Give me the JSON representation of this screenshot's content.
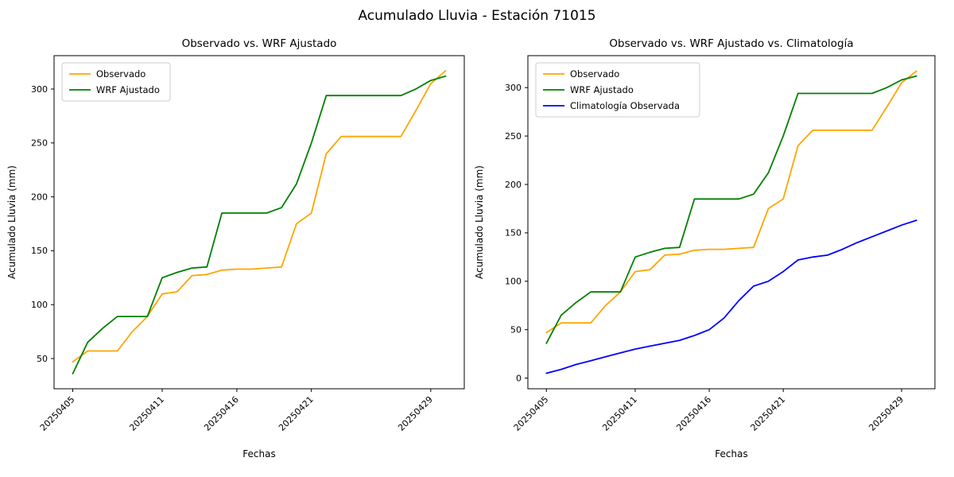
{
  "figure": {
    "suptitle": "Acumulado Lluvia - Estación 71015",
    "background": "#ffffff",
    "text_color": "#000000"
  },
  "chart_data": [
    {
      "type": "line",
      "title": "Observado vs. WRF Ajustado",
      "xlabel": "Fechas",
      "ylabel": "Acumulado Lluvia (mm)",
      "grid": false,
      "legend_position": "upper left",
      "ylim": [
        22,
        331
      ],
      "yticks": [
        50,
        100,
        150,
        200,
        250,
        300
      ],
      "x": [
        "20250405",
        "20250406",
        "20250407",
        "20250408",
        "20250409",
        "20250410",
        "20250411",
        "20250412",
        "20250413",
        "20250414",
        "20250415",
        "20250416",
        "20250417",
        "20250418",
        "20250419",
        "20250420",
        "20250421",
        "20250422",
        "20250423",
        "20250424",
        "20250425",
        "20250426",
        "20250427",
        "20250428",
        "20250429",
        "20250430"
      ],
      "xticks": [
        {
          "label": "20250405",
          "index": 0
        },
        {
          "label": "20250411",
          "index": 6
        },
        {
          "label": "20250416",
          "index": 11
        },
        {
          "label": "20250421",
          "index": 16
        },
        {
          "label": "20250429",
          "index": 24
        }
      ],
      "series": [
        {
          "name": "Observado",
          "color": "#FFA500",
          "values": [
            47,
            57,
            57,
            57,
            75,
            89,
            110,
            112,
            127,
            128,
            132,
            133,
            133,
            134,
            135,
            175,
            185,
            240,
            256,
            256,
            256,
            256,
            256,
            280,
            305,
            317
          ]
        },
        {
          "name": "WRF Ajustado",
          "color": "#008000",
          "values": [
            36,
            65,
            78,
            89,
            89,
            89,
            125,
            130,
            134,
            135,
            185,
            185,
            185,
            185,
            190,
            212,
            250,
            294,
            294,
            294,
            294,
            294,
            294,
            300,
            308,
            312
          ]
        }
      ]
    },
    {
      "type": "line",
      "title": "Observado vs. WRF Ajustado vs. Climatología",
      "xlabel": "Fechas",
      "ylabel": "Acumulado Lluvia (mm)",
      "grid": false,
      "legend_position": "upper left",
      "ylim": [
        -11,
        333
      ],
      "yticks": [
        0,
        50,
        100,
        150,
        200,
        250,
        300
      ],
      "x": [
        "20250405",
        "20250406",
        "20250407",
        "20250408",
        "20250409",
        "20250410",
        "20250411",
        "20250412",
        "20250413",
        "20250414",
        "20250415",
        "20250416",
        "20250417",
        "20250418",
        "20250419",
        "20250420",
        "20250421",
        "20250422",
        "20250423",
        "20250424",
        "20250425",
        "20250426",
        "20250427",
        "20250428",
        "20250429",
        "20250430"
      ],
      "xticks": [
        {
          "label": "20250405",
          "index": 0
        },
        {
          "label": "20250411",
          "index": 6
        },
        {
          "label": "20250416",
          "index": 11
        },
        {
          "label": "20250421",
          "index": 16
        },
        {
          "label": "20250429",
          "index": 24
        }
      ],
      "series": [
        {
          "name": "Observado",
          "color": "#FFA500",
          "values": [
            47,
            57,
            57,
            57,
            75,
            89,
            110,
            112,
            127,
            128,
            132,
            133,
            133,
            134,
            135,
            175,
            185,
            240,
            256,
            256,
            256,
            256,
            256,
            280,
            305,
            317
          ]
        },
        {
          "name": "WRF Ajustado",
          "color": "#008000",
          "values": [
            36,
            65,
            78,
            89,
            89,
            89,
            125,
            130,
            134,
            135,
            185,
            185,
            185,
            185,
            190,
            212,
            250,
            294,
            294,
            294,
            294,
            294,
            294,
            300,
            308,
            312
          ]
        },
        {
          "name": "Climatología Observada",
          "color": "#0000FF",
          "values": [
            5,
            9,
            14,
            18,
            22,
            26,
            30,
            33,
            36,
            39,
            44,
            50,
            62,
            80,
            95,
            100,
            110,
            122,
            125,
            127,
            133,
            140,
            146,
            152,
            158,
            163
          ]
        }
      ]
    }
  ]
}
